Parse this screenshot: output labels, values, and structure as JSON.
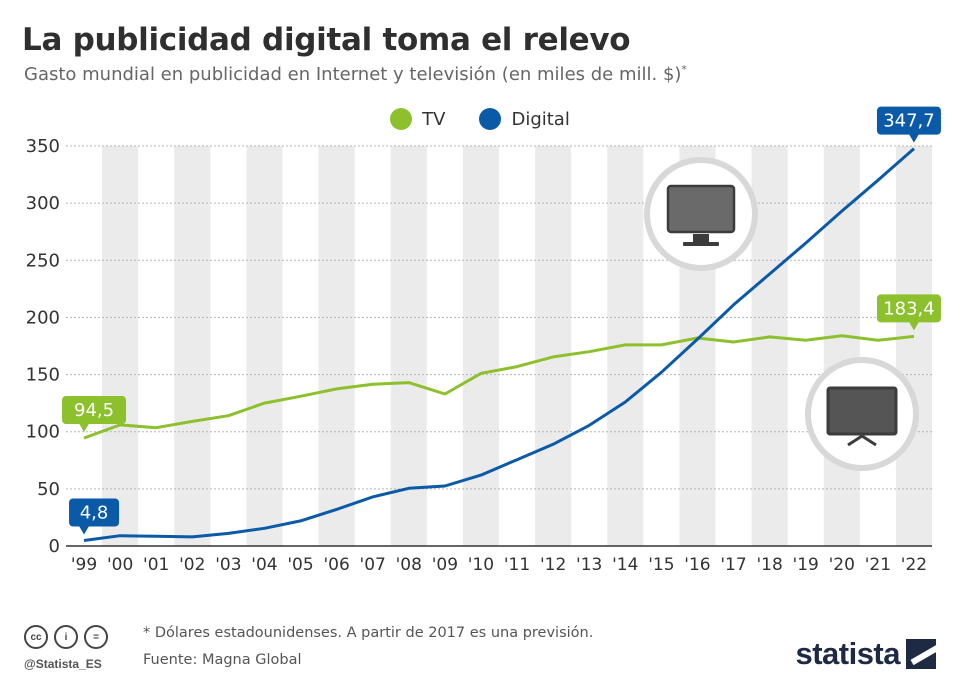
{
  "header": {
    "title": "La publicidad digital toma el relevo",
    "subtitle": "Gasto mundial en publicidad en Internet y televisión (en miles de mill. $)",
    "subtitle_mark": "*"
  },
  "colors": {
    "tv": "#8dc02d",
    "digital": "#0a5aa8",
    "band": "#ebebeb"
  },
  "icons": {
    "digital_icon": "computer-monitor-icon",
    "tv_icon": "television-icon"
  },
  "chart_data": {
    "type": "line",
    "categories": [
      "'99",
      "'00",
      "'01",
      "'02",
      "'03",
      "'04",
      "'05",
      "'06",
      "'07",
      "'08",
      "'09",
      "'10",
      "'11",
      "'12",
      "'13",
      "'14",
      "'15",
      "'16",
      "'17",
      "'18",
      "'19",
      "'20",
      "'21",
      "'22"
    ],
    "series": [
      {
        "name": "TV",
        "values": [
          94.5,
          106,
          103.5,
          109,
          114,
          125,
          131,
          137.5,
          141.5,
          143,
          133,
          151,
          157,
          165.5,
          170,
          176,
          176,
          182,
          178.5,
          183,
          180,
          184,
          180,
          183.4
        ]
      },
      {
        "name": "Digital",
        "values": [
          4.8,
          9,
          8.5,
          8,
          11,
          15.5,
          22,
          32,
          43,
          50.5,
          52.5,
          62,
          75.5,
          89,
          105.5,
          126,
          152,
          181,
          211,
          238,
          265,
          293,
          320,
          347.7
        ]
      }
    ],
    "yticks": [
      "0",
      "50",
      "100",
      "150",
      "200",
      "250",
      "300",
      "350"
    ],
    "ylim": [
      0,
      350
    ],
    "grid": true,
    "legend_position": "top-center",
    "annotations": [
      {
        "series": "TV",
        "label": "94,5",
        "at": "start"
      },
      {
        "series": "Digital",
        "label": "4,8",
        "at": "start"
      },
      {
        "series": "TV",
        "label": "183,4",
        "at": "end"
      },
      {
        "series": "Digital",
        "label": "347,7",
        "at": "end"
      }
    ]
  },
  "footer": {
    "note": "* Dólares estadounidenses. A partir de 2017 es una previsión.",
    "source": "Fuente: Magna Global",
    "handle": "@Statista_ES",
    "brand": "statista"
  }
}
